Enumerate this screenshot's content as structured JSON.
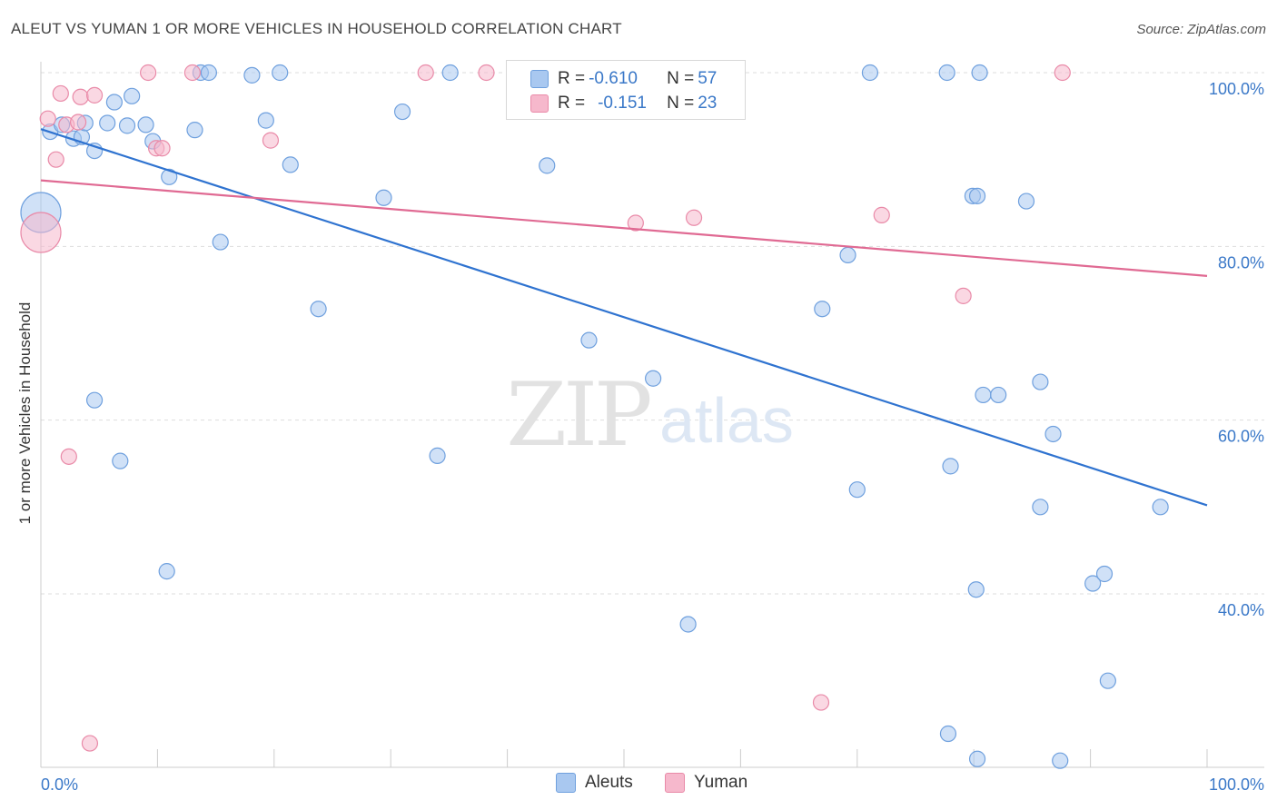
{
  "header": {
    "title": "ALEUT VS YUMAN 1 OR MORE VEHICLES IN HOUSEHOLD CORRELATION CHART",
    "source": "Source: ZipAtlas.com"
  },
  "watermark": {
    "zip": "ZIP",
    "atlas": "atlas"
  },
  "legend_top": {
    "rows": [
      {
        "r_label": "R = ",
        "r_value": "-0.610",
        "n_label": "N = ",
        "n_value": "57",
        "color": "#a9c8f0"
      },
      {
        "r_label": "R = ",
        "r_value": "-0.151",
        "n_label": "N = ",
        "n_value": "23",
        "color": "#f6b8cc"
      }
    ]
  },
  "legend_bottom": {
    "items": [
      {
        "label": "Aleuts",
        "color": "#a9c8f0"
      },
      {
        "label": "Yuman",
        "color": "#f6b8cc"
      }
    ]
  },
  "colors": {
    "aleut_fill": "#a9c8f0",
    "aleut_stroke": "#6fa0de",
    "aleut_line": "#2f73d0",
    "yuman_fill": "#f6b8cc",
    "yuman_stroke": "#e98aa8",
    "yuman_line": "#e06a93",
    "tick_label": "#3a78c8",
    "grid": "#dddddd"
  },
  "chart_data": {
    "type": "scatter",
    "title": "ALEUT VS YUMAN 1 OR MORE VEHICLES IN HOUSEHOLD CORRELATION CHART",
    "xlabel": "",
    "ylabel": "1 or more Vehicles in Household",
    "xlim": [
      0,
      100
    ],
    "ylim": [
      20,
      101
    ],
    "x_tick_labels": [
      {
        "value": 0,
        "label": "0.0%"
      },
      {
        "value": 100,
        "label": "100.0%"
      }
    ],
    "y_tick_labels": [
      {
        "value": 100,
        "label": "100.0%"
      },
      {
        "value": 80,
        "label": "80.0%"
      },
      {
        "value": 60,
        "label": "60.0%"
      },
      {
        "value": 40,
        "label": "40.0%"
      }
    ],
    "grid": true,
    "legend_position": "top-center",
    "series": [
      {
        "name": "Aleuts",
        "r": -0.61,
        "n": 57,
        "trend": {
          "x": [
            0,
            100
          ],
          "y": [
            93.5,
            50.2
          ]
        },
        "points": [
          {
            "x": 0,
            "y": 83.9,
            "big": true
          },
          {
            "x": 0.8,
            "y": 93.2
          },
          {
            "x": 1.8,
            "y": 94.0
          },
          {
            "x": 2.8,
            "y": 92.4
          },
          {
            "x": 3.5,
            "y": 92.6
          },
          {
            "x": 3.8,
            "y": 94.2
          },
          {
            "x": 4.6,
            "y": 91.0
          },
          {
            "x": 5.7,
            "y": 94.2
          },
          {
            "x": 6.3,
            "y": 96.6
          },
          {
            "x": 7.4,
            "y": 93.9
          },
          {
            "x": 7.8,
            "y": 97.3
          },
          {
            "x": 9.0,
            "y": 94.0
          },
          {
            "x": 9.6,
            "y": 92.1
          },
          {
            "x": 11.0,
            "y": 88.0
          },
          {
            "x": 13.2,
            "y": 93.4
          },
          {
            "x": 13.7,
            "y": 100
          },
          {
            "x": 14.4,
            "y": 100
          },
          {
            "x": 15.4,
            "y": 80.5
          },
          {
            "x": 18.1,
            "y": 99.7
          },
          {
            "x": 19.3,
            "y": 94.5
          },
          {
            "x": 20.5,
            "y": 100
          },
          {
            "x": 21.4,
            "y": 89.4
          },
          {
            "x": 29.4,
            "y": 85.6
          },
          {
            "x": 31.0,
            "y": 95.5
          },
          {
            "x": 35.1,
            "y": 100
          },
          {
            "x": 43.4,
            "y": 89.3
          },
          {
            "x": 4.6,
            "y": 62.3
          },
          {
            "x": 6.8,
            "y": 55.3
          },
          {
            "x": 10.8,
            "y": 42.6
          },
          {
            "x": 23.8,
            "y": 72.8
          },
          {
            "x": 34.0,
            "y": 55.9
          },
          {
            "x": 47.0,
            "y": 69.2
          },
          {
            "x": 52.5,
            "y": 64.8
          },
          {
            "x": 55.5,
            "y": 36.5
          },
          {
            "x": 67.0,
            "y": 72.8
          },
          {
            "x": 69.2,
            "y": 79.0
          },
          {
            "x": 70.0,
            "y": 52.0
          },
          {
            "x": 71.1,
            "y": 100
          },
          {
            "x": 77.7,
            "y": 100
          },
          {
            "x": 77.8,
            "y": 23.9
          },
          {
            "x": 78.0,
            "y": 54.7
          },
          {
            "x": 79.9,
            "y": 85.8
          },
          {
            "x": 80.3,
            "y": 85.8
          },
          {
            "x": 84.5,
            "y": 85.2
          },
          {
            "x": 85.7,
            "y": 50.0
          },
          {
            "x": 80.2,
            "y": 40.5
          },
          {
            "x": 80.5,
            "y": 100
          },
          {
            "x": 80.8,
            "y": 62.9
          },
          {
            "x": 82.1,
            "y": 62.9
          },
          {
            "x": 85.7,
            "y": 64.4
          },
          {
            "x": 86.8,
            "y": 58.4
          },
          {
            "x": 90.2,
            "y": 41.2
          },
          {
            "x": 87.4,
            "y": 20.8
          },
          {
            "x": 91.2,
            "y": 42.3
          },
          {
            "x": 91.5,
            "y": 30.0
          },
          {
            "x": 96.0,
            "y": 50.0
          },
          {
            "x": 80.3,
            "y": 21.0
          }
        ]
      },
      {
        "name": "Yuman",
        "r": -0.151,
        "n": 23,
        "trend": {
          "x": [
            0,
            100
          ],
          "y": [
            87.6,
            76.6
          ]
        },
        "points": [
          {
            "x": 0,
            "y": 81.6,
            "big": true
          },
          {
            "x": 0.6,
            "y": 94.7
          },
          {
            "x": 1.3,
            "y": 90.0
          },
          {
            "x": 1.7,
            "y": 97.6
          },
          {
            "x": 2.2,
            "y": 94.0
          },
          {
            "x": 3.2,
            "y": 94.3
          },
          {
            "x": 3.4,
            "y": 97.2
          },
          {
            "x": 4.6,
            "y": 97.4
          },
          {
            "x": 9.2,
            "y": 100
          },
          {
            "x": 9.9,
            "y": 91.3
          },
          {
            "x": 10.4,
            "y": 91.3
          },
          {
            "x": 13.0,
            "y": 100
          },
          {
            "x": 19.7,
            "y": 92.2
          },
          {
            "x": 33.0,
            "y": 100
          },
          {
            "x": 38.2,
            "y": 100
          },
          {
            "x": 2.4,
            "y": 55.8
          },
          {
            "x": 4.2,
            "y": 22.8
          },
          {
            "x": 51.0,
            "y": 82.7
          },
          {
            "x": 56.0,
            "y": 83.3
          },
          {
            "x": 66.9,
            "y": 27.5
          },
          {
            "x": 72.1,
            "y": 83.6
          },
          {
            "x": 79.1,
            "y": 74.3
          },
          {
            "x": 87.6,
            "y": 100
          }
        ]
      }
    ]
  }
}
